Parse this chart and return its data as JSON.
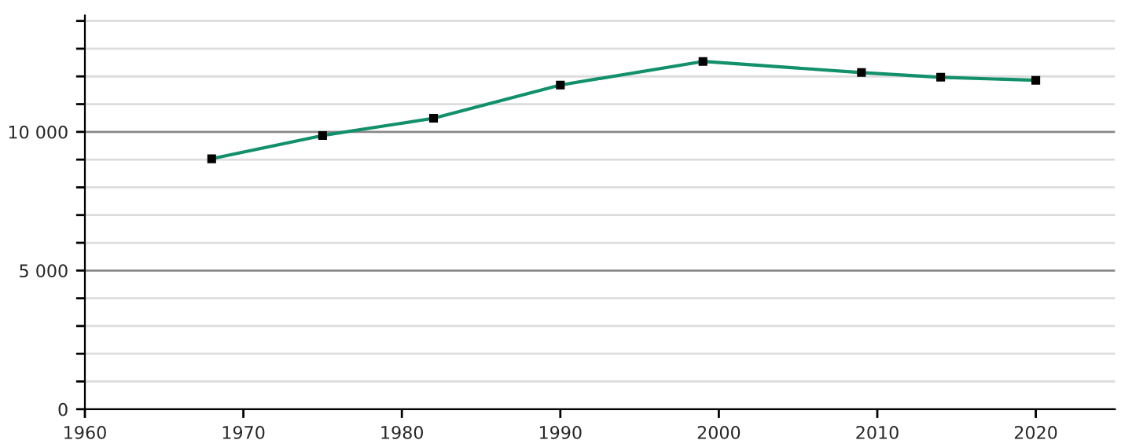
{
  "chart_data": {
    "type": "line",
    "x": [
      1968,
      1975,
      1982,
      1990,
      1999,
      2009,
      2014,
      2020
    ],
    "series": [
      {
        "color": "#11906b",
        "values": [
          9030,
          9870,
          10490,
          11690,
          12540,
          12140,
          11970,
          11860
        ]
      }
    ],
    "marker": "square",
    "xlim": [
      1960,
      2025
    ],
    "xticks": [
      1960,
      1970,
      1980,
      1990,
      2000,
      2010,
      2020
    ],
    "ylim": [
      0,
      14200
    ],
    "yticks": [
      {
        "value": 0,
        "label": "0"
      },
      {
        "value": 1000,
        "label": null
      },
      {
        "value": 2000,
        "label": null
      },
      {
        "value": 3000,
        "label": null
      },
      {
        "value": 4000,
        "label": null
      },
      {
        "value": 5000,
        "label": "5 000"
      },
      {
        "value": 6000,
        "label": null
      },
      {
        "value": 7000,
        "label": null
      },
      {
        "value": 8000,
        "label": null
      },
      {
        "value": 9000,
        "label": null
      },
      {
        "value": 10000,
        "label": "10 000"
      },
      {
        "value": 11000,
        "label": null
      },
      {
        "value": 12000,
        "label": null
      },
      {
        "value": 13000,
        "label": null
      },
      {
        "value": 14000,
        "label": null
      }
    ],
    "grid": "y"
  }
}
